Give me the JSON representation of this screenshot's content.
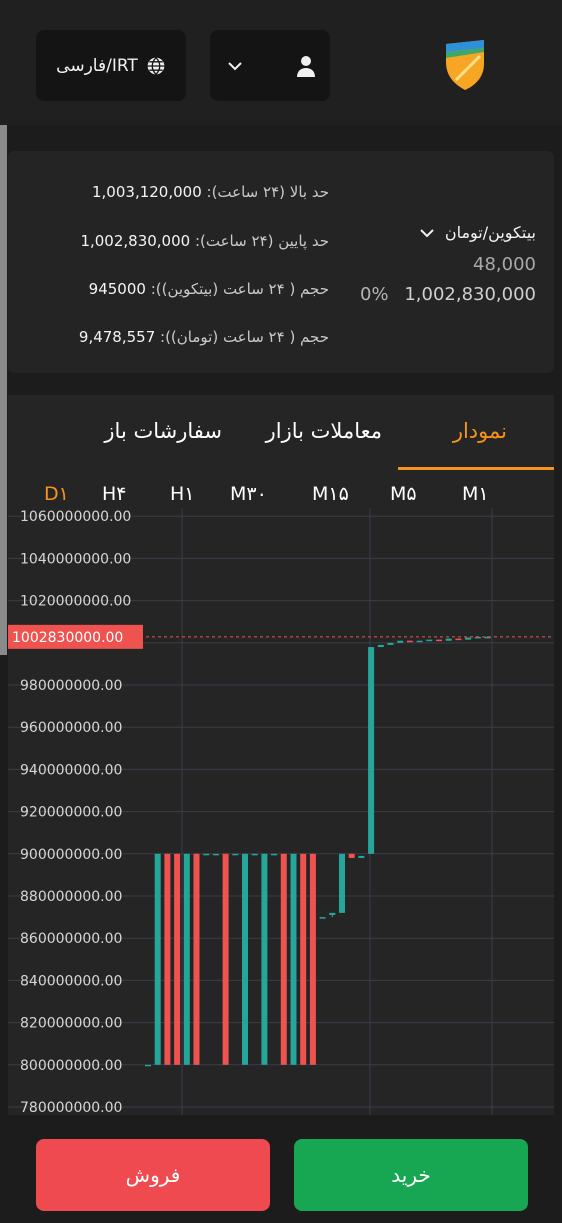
{
  "header": {
    "lang_label": "فارسی/IRT",
    "icons": {
      "lang": "globe-icon",
      "menu": "chevron-down-icon",
      "user": "user-icon",
      "logo": "shield-logo"
    }
  },
  "ticker": {
    "stats": [
      {
        "label": "حد بالا (۲۴ ساعت):",
        "value": "1,003,120,000"
      },
      {
        "label": "حد پایین (۲۴ ساعت):",
        "value": "1,002,830,000"
      },
      {
        "label": "حجم ( ۲۴ ساعت (بیتکوین)):",
        "value": "945000"
      },
      {
        "label": "حجم ( ۲۴ ساعت (تومان)):",
        "value": "9,478,557"
      }
    ],
    "pair": "بیتکوین/تومان",
    "volume": "48,000",
    "price": "1,002,830,000",
    "change": "0%"
  },
  "tabs": [
    {
      "label": "نمودار",
      "active": true
    },
    {
      "label": "معاملات بازار",
      "active": false
    },
    {
      "label": "سفارشات باز",
      "active": false
    }
  ],
  "timeframes": [
    {
      "label": "M۱",
      "active": false
    },
    {
      "label": "M۵",
      "active": false
    },
    {
      "label": "M۱۵",
      "active": false
    },
    {
      "label": "M۳۰",
      "active": false
    },
    {
      "label": "H۱",
      "active": false
    },
    {
      "label": "H۴",
      "active": false
    },
    {
      "label": "D۱",
      "active": true
    }
  ],
  "chart_data": {
    "type": "candlestick",
    "y_ticks": [
      "1060000000.00",
      "1040000000.00",
      "1020000000.00",
      "1000000000.00",
      "980000000.00",
      "960000000.00",
      "940000000.00",
      "920000000.00",
      "900000000.00",
      "880000000.00",
      "860000000.00",
      "840000000.00",
      "820000000.00",
      "800000000.00",
      "780000000.00"
    ],
    "ylim": [
      780000000,
      1062000000
    ],
    "last_price_label": "1002830000.00",
    "last_price": 1002830000,
    "colors": {
      "up": "#26a69a",
      "down": "#ef5350",
      "price_line": "#ef5350"
    },
    "candles": [
      {
        "o": 800000000,
        "h": 800000000,
        "l": 800000000,
        "c": 800000000
      },
      {
        "o": 800000000,
        "h": 900000000,
        "l": 800000000,
        "c": 900000000
      },
      {
        "o": 900000000,
        "h": 900000000,
        "l": 800000000,
        "c": 800000000
      },
      {
        "o": 900000000,
        "h": 900000000,
        "l": 800000000,
        "c": 800000000
      },
      {
        "o": 800000000,
        "h": 900000000,
        "l": 800000000,
        "c": 900000000
      },
      {
        "o": 900000000,
        "h": 900000000,
        "l": 800000000,
        "c": 800000000
      },
      {
        "o": 900000000,
        "h": 900000000,
        "l": 900000000,
        "c": 900000000
      },
      {
        "o": 900000000,
        "h": 900000000,
        "l": 900000000,
        "c": 900000000
      },
      {
        "o": 900000000,
        "h": 900000000,
        "l": 800000000,
        "c": 800000000
      },
      {
        "o": 900000000,
        "h": 900000000,
        "l": 900000000,
        "c": 900000000
      },
      {
        "o": 800000000,
        "h": 900000000,
        "l": 800000000,
        "c": 900000000
      },
      {
        "o": 900000000,
        "h": 900000000,
        "l": 900000000,
        "c": 900000000
      },
      {
        "o": 800000000,
        "h": 900000000,
        "l": 800000000,
        "c": 900000000
      },
      {
        "o": 900000000,
        "h": 900000000,
        "l": 900000000,
        "c": 900000000
      },
      {
        "o": 900000000,
        "h": 900000000,
        "l": 800000000,
        "c": 800000000
      },
      {
        "o": 800000000,
        "h": 900000000,
        "l": 800000000,
        "c": 900000000
      },
      {
        "o": 900000000,
        "h": 900000000,
        "l": 800000000,
        "c": 800000000
      },
      {
        "o": 900000000,
        "h": 900000000,
        "l": 800000000,
        "c": 800000000
      },
      {
        "o": 870000000,
        "h": 870000000,
        "l": 870000000,
        "c": 870000000
      },
      {
        "o": 871000000,
        "h": 872000000,
        "l": 870000000,
        "c": 872000000
      },
      {
        "o": 872000000,
        "h": 900000000,
        "l": 872000000,
        "c": 900000000
      },
      {
        "o": 900000000,
        "h": 900000000,
        "l": 898000000,
        "c": 898000000
      },
      {
        "o": 898000000,
        "h": 899000000,
        "l": 898000000,
        "c": 899000000
      },
      {
        "o": 900000000,
        "h": 998000000,
        "l": 900000000,
        "c": 998000000
      },
      {
        "o": 998000000,
        "h": 999000000,
        "l": 998000000,
        "c": 999000000
      },
      {
        "o": 999000000,
        "h": 1000000000,
        "l": 999000000,
        "c": 1000000000
      },
      {
        "o": 1000000000,
        "h": 1001000000,
        "l": 1000000000,
        "c": 1001000000
      },
      {
        "o": 1001000000,
        "h": 1001000000,
        "l": 1000500000,
        "c": 1000500000
      },
      {
        "o": 1000500000,
        "h": 1001000000,
        "l": 1000500000,
        "c": 1001000000
      },
      {
        "o": 1001000000,
        "h": 1001500000,
        "l": 1001000000,
        "c": 1001500000
      },
      {
        "o": 1001500000,
        "h": 1001500000,
        "l": 1001000000,
        "c": 1001000000
      },
      {
        "o": 1001000000,
        "h": 1002000000,
        "l": 1001000000,
        "c": 1002000000
      },
      {
        "o": 1002000000,
        "h": 1002000000,
        "l": 1001500000,
        "c": 1001500000
      },
      {
        "o": 1001500000,
        "h": 1002500000,
        "l": 1001500000,
        "c": 1002500000
      },
      {
        "o": 1002500000,
        "h": 1002800000,
        "l": 1002500000,
        "c": 1002800000
      },
      {
        "o": 1002800000,
        "h": 1003100000,
        "l": 1002800000,
        "c": 1002830000
      }
    ]
  },
  "footer": {
    "sell_label": "فروش",
    "buy_label": "خرید"
  }
}
